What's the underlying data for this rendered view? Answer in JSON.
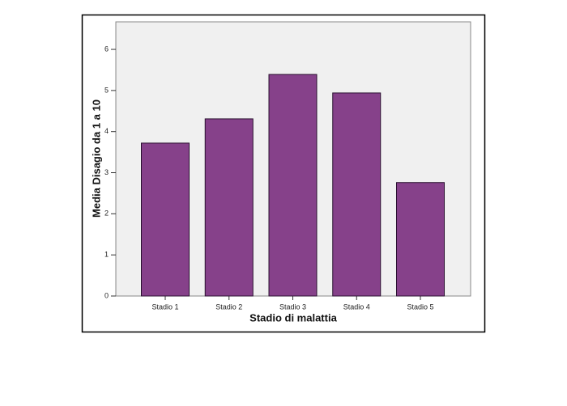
{
  "chart_data": {
    "type": "bar",
    "y_label": "Media Disagio da 1 a 10",
    "x_label": "Stadio di malattia",
    "categories": [
      "Stadio 1",
      "Stadio 2",
      "Stadio 3",
      "Stadio 4",
      "Stadio 5"
    ],
    "values": [
      3.72,
      4.31,
      5.39,
      4.94,
      2.76
    ],
    "color": "#86418a",
    "ylim": [
      0,
      6.67
    ],
    "yticks": [
      0,
      1,
      2,
      3,
      4,
      5,
      6
    ],
    "grid": false
  }
}
